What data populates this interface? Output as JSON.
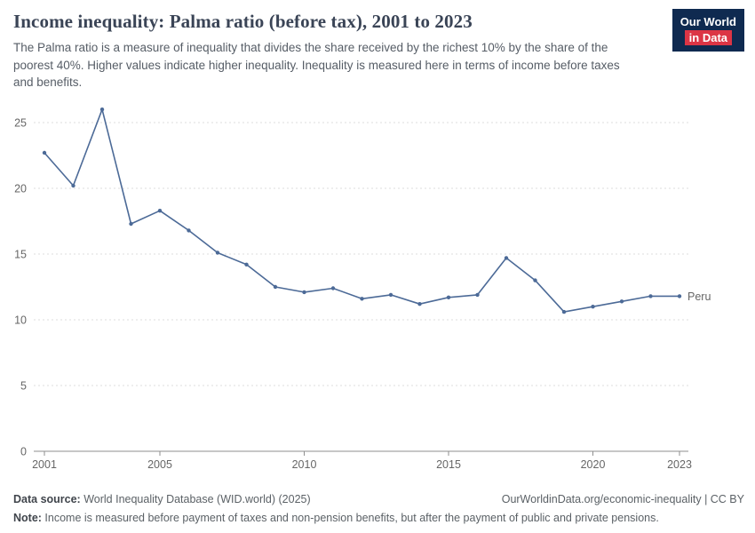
{
  "header": {
    "title": "Income inequality: Palma ratio (before tax), 2001 to 2023",
    "subtitle": "The Palma ratio is a measure of inequality that divides the share received by the richest 10% by the share of the poorest 40%. Higher values indicate higher inequality. Inequality is measured here in terms of income before taxes and benefits.",
    "logo": {
      "line1": "Our World",
      "line2": "in Data"
    }
  },
  "colors": {
    "series_line": "#4c6a97",
    "logo_bg": "#0f2a50",
    "logo_accent": "#dc3545",
    "grid": "#dcdcdc",
    "axis": "#8f8f8f",
    "tick_label": "#666666"
  },
  "chart_data": {
    "type": "line",
    "title": "Income inequality: Palma ratio (before tax), 2001 to 2023",
    "xlabel": "",
    "ylabel": "",
    "ylim": [
      0,
      25
    ],
    "yticks": [
      0,
      5,
      10,
      15,
      20,
      25
    ],
    "xticks": [
      2001,
      2005,
      2010,
      2015,
      2020,
      2023
    ],
    "grid": "horizontal-dashed",
    "legend_position": "end-of-line-label",
    "x": [
      2001,
      2002,
      2003,
      2004,
      2005,
      2006,
      2007,
      2008,
      2009,
      2010,
      2011,
      2012,
      2013,
      2014,
      2015,
      2016,
      2017,
      2018,
      2019,
      2020,
      2021,
      2022,
      2023
    ],
    "series": [
      {
        "name": "Peru",
        "color": "#4c6a97",
        "values": [
          22.7,
          20.2,
          26.0,
          17.3,
          18.3,
          16.8,
          15.1,
          14.2,
          12.5,
          12.1,
          12.4,
          11.6,
          11.9,
          11.2,
          11.7,
          11.9,
          14.7,
          13.0,
          10.6,
          11.0,
          11.4,
          11.8,
          11.8
        ]
      }
    ]
  },
  "footer": {
    "datasource_label": "Data source:",
    "datasource_text": " World Inequality Database (WID.world) (2025)",
    "link": "OurWorldinData.org/economic-inequality | CC BY",
    "note_label": "Note:",
    "note_text": " Income is measured before payment of taxes and non-pension benefits, but after the payment of public and private pensions."
  }
}
